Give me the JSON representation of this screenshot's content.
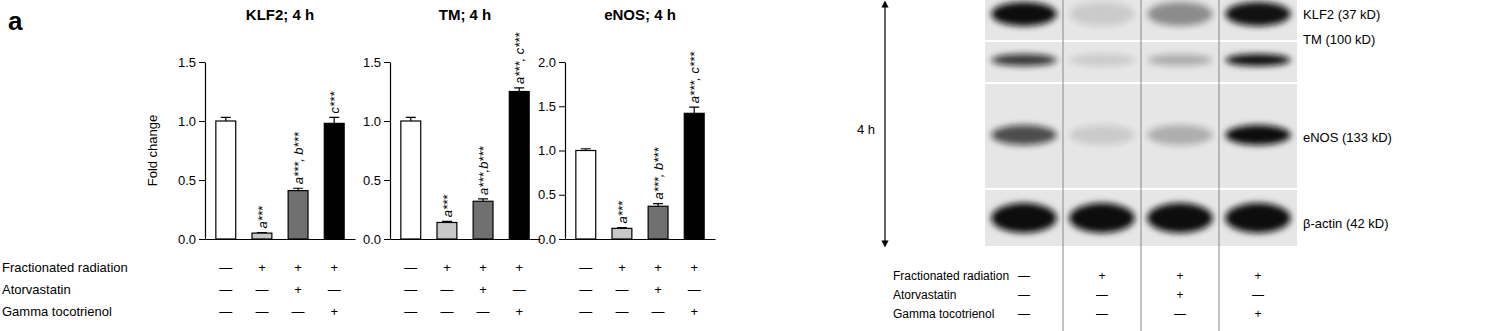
{
  "panel_label": "a",
  "treatments": [
    {
      "name": "Fractionated radiation",
      "marks": [
        "—",
        "+",
        "+",
        "+"
      ]
    },
    {
      "name": "Atorvastatin",
      "marks": [
        "—",
        "—",
        "+",
        "—"
      ]
    },
    {
      "name": "Gamma tocotrienol",
      "marks": [
        "—",
        "—",
        "—",
        "+"
      ]
    }
  ],
  "chart_data": [
    {
      "type": "bar",
      "title": "KLF2; 4 h",
      "y_label": "Fold change",
      "categories": [
        null,
        null,
        null,
        null
      ],
      "values": [
        1.0,
        0.05,
        0.41,
        0.98
      ],
      "errors": [
        0.03,
        0.005,
        0.02,
        0.05
      ],
      "colors": [
        "#ffffff",
        "#c8c8c8",
        "#707070",
        "#000000"
      ],
      "annotations": [
        null,
        "a***",
        "a***, b***",
        "c***"
      ],
      "ylim": [
        0,
        1.5
      ],
      "yticks": [
        {
          "value": 0,
          "label": "0.0"
        },
        {
          "value": 0.5,
          "label": "0.5"
        },
        {
          "value": 1,
          "label": "1.0"
        },
        {
          "value": 1.5,
          "label": "1.5"
        }
      ]
    },
    {
      "type": "bar",
      "title": "TM; 4 h",
      "categories": [
        null,
        null,
        null,
        null
      ],
      "values": [
        1.0,
        0.14,
        0.32,
        1.25
      ],
      "errors": [
        0.03,
        0.01,
        0.02,
        0.03
      ],
      "colors": [
        "#ffffff",
        "#c8c8c8",
        "#707070",
        "#000000"
      ],
      "annotations": [
        null,
        "a***",
        "a***,b***",
        "a***, c***"
      ],
      "ylim": [
        0,
        1.5
      ],
      "yticks": [
        {
          "value": 0,
          "label": "0.0"
        },
        {
          "value": 0.5,
          "label": "0.5"
        },
        {
          "value": 1,
          "label": "1.0"
        },
        {
          "value": 1.5,
          "label": "1.5"
        }
      ]
    },
    {
      "type": "bar",
      "title": "eNOS; 4 h",
      "categories": [
        null,
        null,
        null,
        null
      ],
      "values": [
        1.0,
        0.12,
        0.37,
        1.42
      ],
      "errors": [
        0.02,
        0.01,
        0.03,
        0.07
      ],
      "colors": [
        "#ffffff",
        "#c8c8c8",
        "#707070",
        "#000000"
      ],
      "annotations": [
        null,
        "a***",
        "a***, b***",
        "a***, c***"
      ],
      "ylim": [
        0,
        2.0
      ],
      "yticks": [
        {
          "value": 0,
          "label": "0.0"
        },
        {
          "value": 0.5,
          "label": "0.5"
        },
        {
          "value": 1,
          "label": "1.0"
        },
        {
          "value": 1.5,
          "label": "1.5"
        },
        {
          "value": 2,
          "label": "2.0"
        }
      ]
    }
  ],
  "blot": {
    "time": "4 h",
    "bands": [
      "KLF2 (37 kD)",
      "TM (100 kD)",
      "eNOS (133 kD)",
      "β-actin (42 kD)"
    ]
  }
}
